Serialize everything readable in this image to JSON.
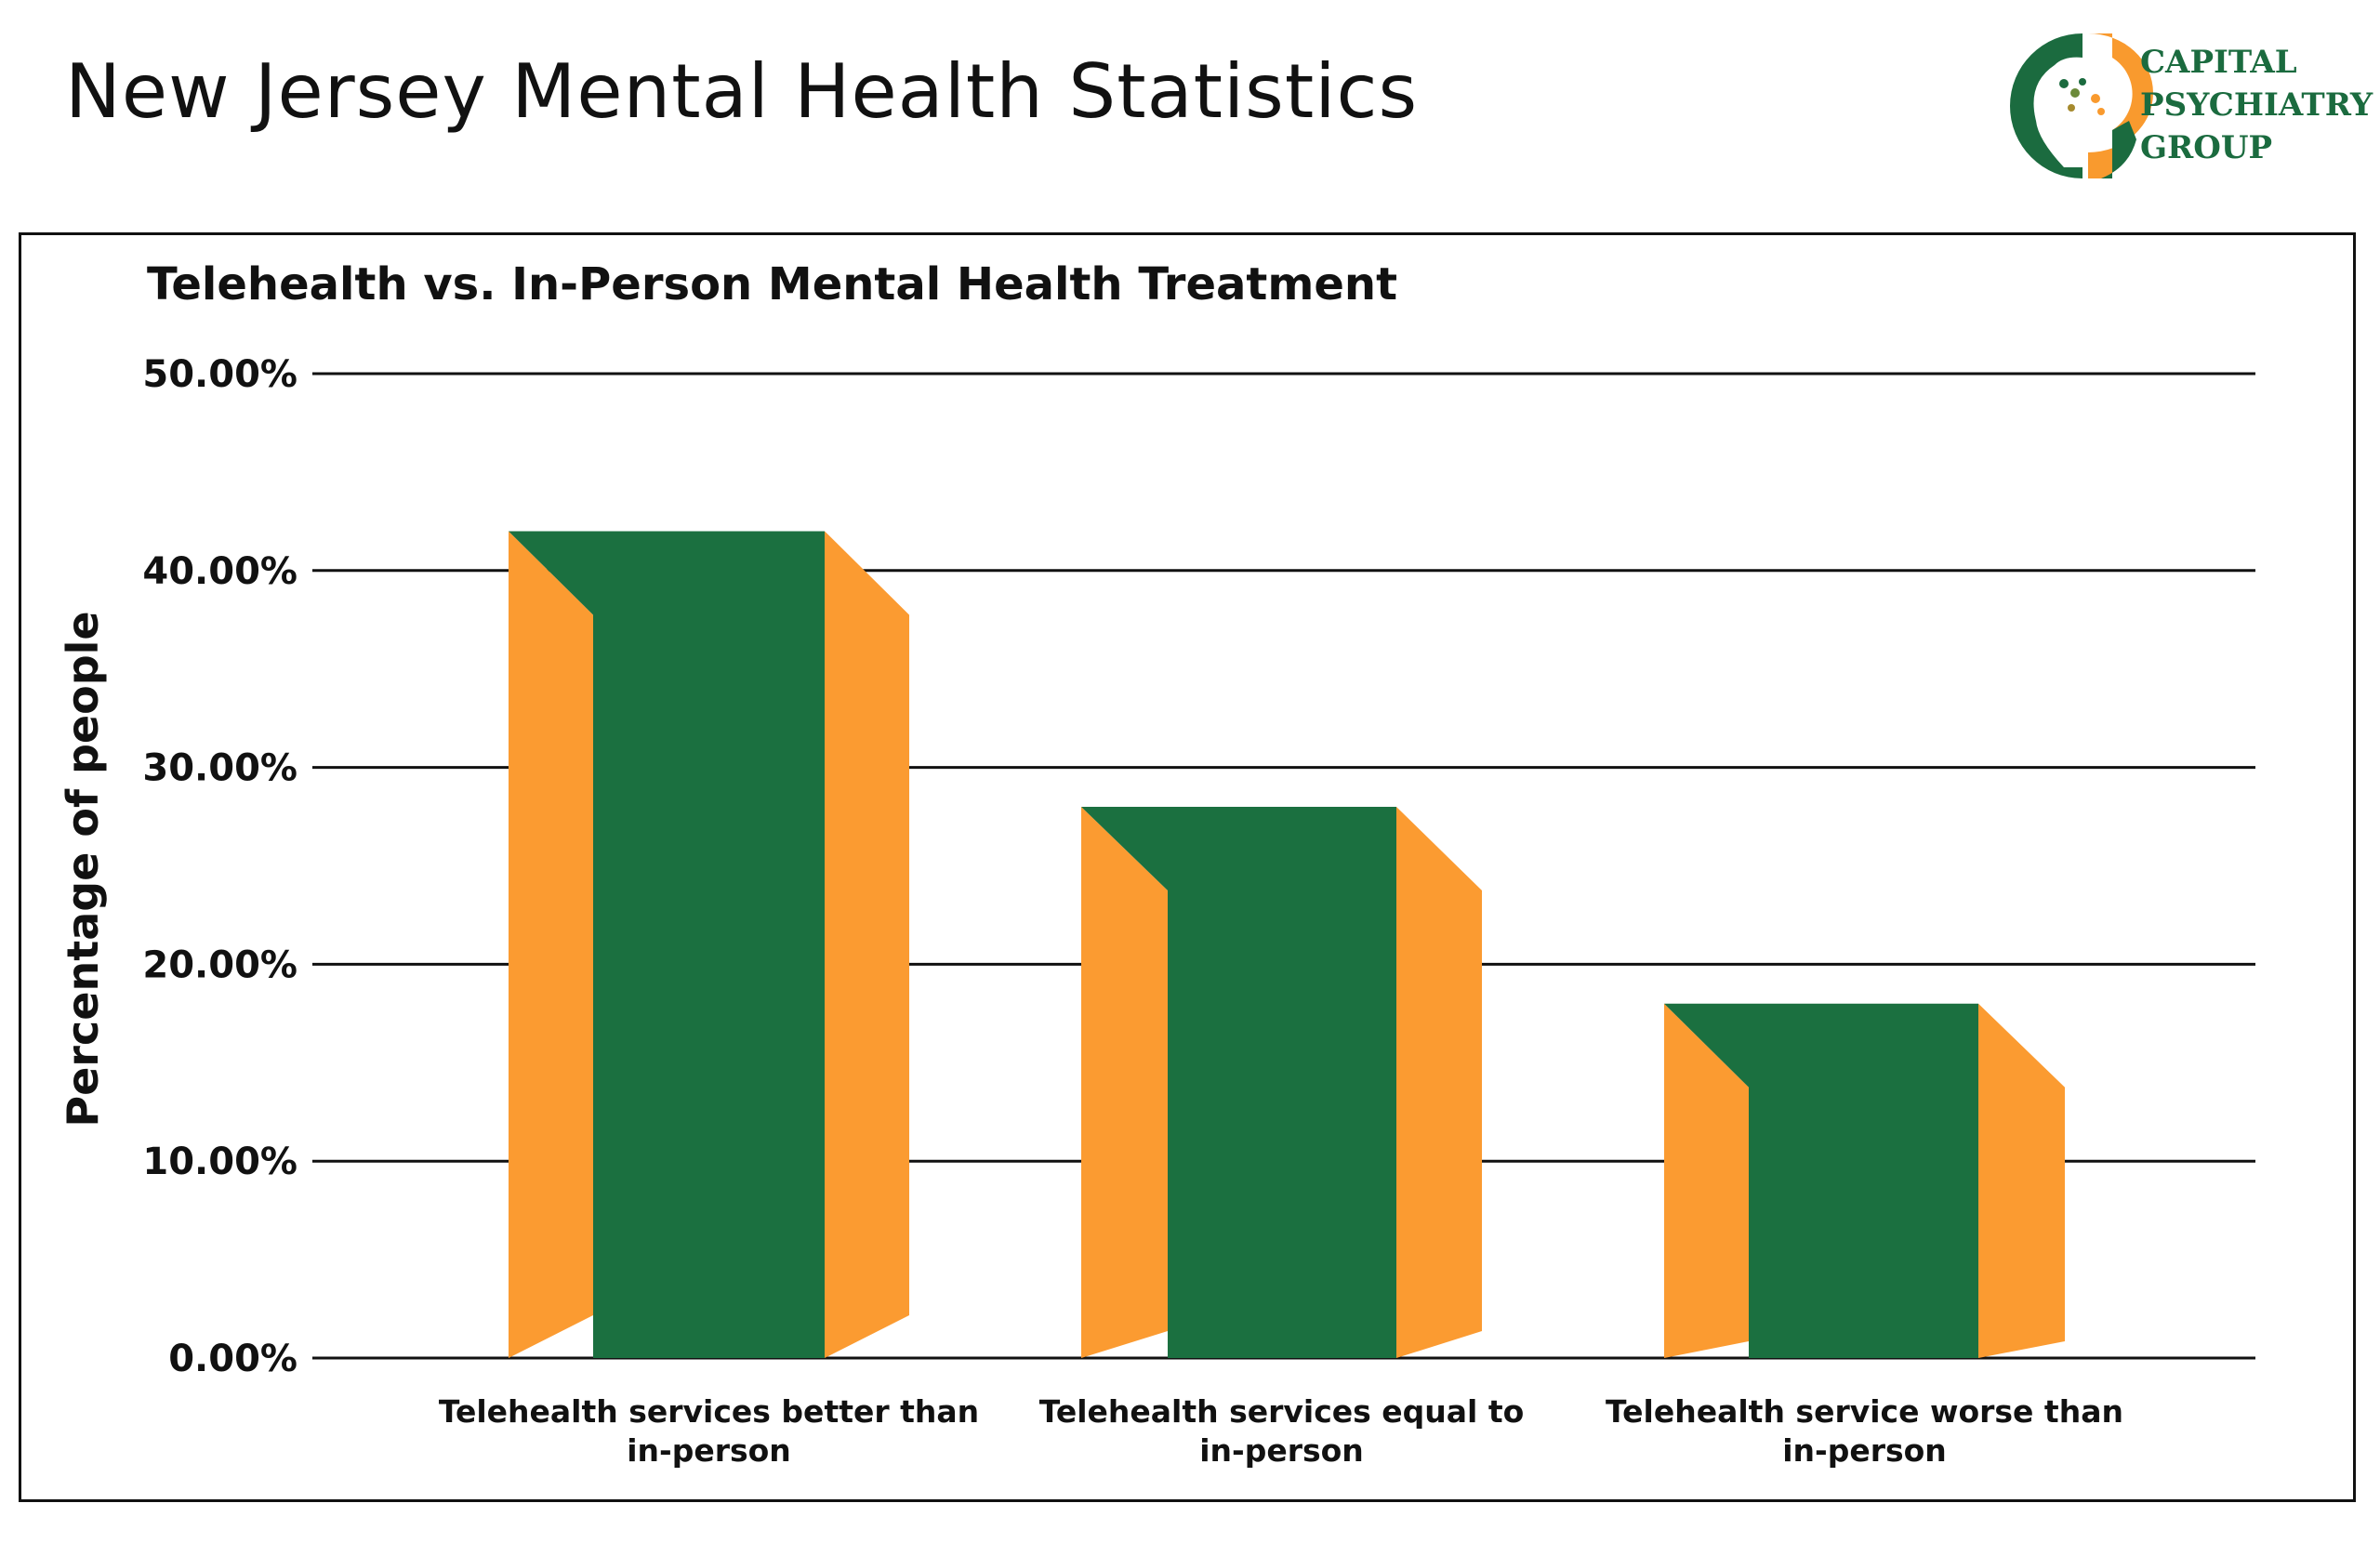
{
  "page": {
    "title": "New Jersey Mental Health Statistics"
  },
  "logo": {
    "lines": [
      "CAPITAL",
      "PSYCHIATRY",
      "GROUP"
    ],
    "colors": {
      "green": "#1b6b3f",
      "orange": "#f99a2e"
    }
  },
  "chart_data": {
    "type": "bar",
    "title": "Telehealth vs. In-Person Mental Health Treatment",
    "xlabel": "",
    "ylabel": "Percentage of people",
    "categories": [
      [
        "Telehealth services better than",
        "in-person"
      ],
      [
        "Telehealth services equal to",
        "in-person"
      ],
      [
        "Telehealth service worse than",
        "in-person"
      ]
    ],
    "values": [
      42,
      28,
      18
    ],
    "ylim": [
      0,
      50
    ],
    "yticks": [
      "0.00%",
      "10.00%",
      "20.00%",
      "30.00%",
      "40.00%",
      "50.00%"
    ],
    "grid": true,
    "colors": {
      "front": "#1b7040",
      "side": "#fb9b31"
    }
  }
}
